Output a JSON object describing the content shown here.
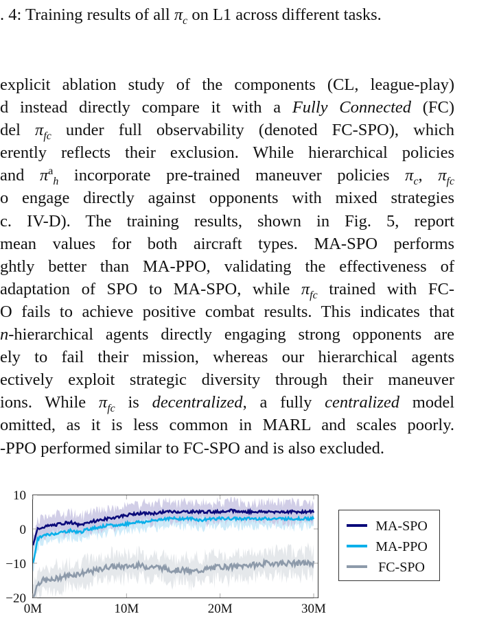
{
  "caption": {
    "text_prefix": ". 4: Training results of all ",
    "symbol": "π",
    "symbol_sub": "c",
    "text_suffix": " on L1 across different tasks."
  },
  "paragraph": {
    "lines": [
      {
        "segments": [
          {
            "t": "explicit ablation study of the components (CL, league-play)"
          }
        ]
      },
      {
        "segments": [
          {
            "t": "d instead directly compare it with a "
          },
          {
            "t": "Fully Connected",
            "i": true
          },
          {
            "t": " (FC)"
          }
        ]
      },
      {
        "segments": [
          {
            "t": "del "
          },
          {
            "t": "π",
            "i": true
          },
          {
            "t": "fc",
            "sub": true
          },
          {
            "t": " under full observability (denoted FC-SPO), which"
          }
        ]
      },
      {
        "segments": [
          {
            "t": "erently reflects their exclusion. While hierarchical policies"
          }
        ]
      },
      {
        "segments": [
          {
            "t": " and "
          },
          {
            "t": "π",
            "i": true
          },
          {
            "t": "a",
            "sup": true
          },
          {
            "t": "h",
            "sub": true
          },
          {
            "t": " incorporate pre-trained maneuver policies "
          },
          {
            "t": "π",
            "i": true
          },
          {
            "t": "c",
            "sub": true
          },
          {
            "t": ", "
          },
          {
            "t": "π",
            "i": true
          },
          {
            "t": "fc",
            "sub": true
          }
        ]
      },
      {
        "segments": [
          {
            "t": "o engage directly against opponents with mixed strategies"
          }
        ]
      },
      {
        "segments": [
          {
            "t": "c. IV-D). The training results, shown in Fig. 5, report"
          }
        ]
      },
      {
        "segments": [
          {
            "t": " mean values for both aircraft types. MA-SPO performs"
          }
        ]
      },
      {
        "segments": [
          {
            "t": "ghtly better than MA-PPO, validating the effectiveness of"
          }
        ]
      },
      {
        "segments": [
          {
            "t": " adaptation of SPO to MA-SPO, while "
          },
          {
            "t": "π",
            "i": true
          },
          {
            "t": "fc",
            "sub": true
          },
          {
            "t": " trained with FC-"
          }
        ]
      },
      {
        "segments": [
          {
            "t": "O fails to achieve positive combat results. This indicates that"
          }
        ]
      },
      {
        "segments": [
          {
            "t": "n",
            "i": true
          },
          {
            "t": "-hierarchical agents directly engaging strong opponents are"
          }
        ]
      },
      {
        "segments": [
          {
            "t": "ely to fail their mission, whereas our hierarchical agents"
          }
        ]
      },
      {
        "segments": [
          {
            "t": "ectively exploit strategic diversity through their maneuver"
          }
        ]
      },
      {
        "segments": [
          {
            "t": "ions. While "
          },
          {
            "t": "π",
            "i": true
          },
          {
            "t": "fc",
            "sub": true
          },
          {
            "t": " is "
          },
          {
            "t": "decentralized",
            "i": true
          },
          {
            "t": ", a fully "
          },
          {
            "t": "centralized",
            "i": true
          },
          {
            "t": " model"
          }
        ]
      },
      {
        "segments": [
          {
            "t": "omitted, as it is less common in MARL and scales poorly."
          }
        ]
      },
      {
        "segments": [
          {
            "t": "-PPO performed similar to FC-SPO and is also excluded."
          }
        ]
      }
    ]
  },
  "chart_data": {
    "type": "line",
    "title": "",
    "xlabel": "",
    "ylabel": "",
    "x_ticks": [
      "0M",
      "10M",
      "20M",
      "30M"
    ],
    "y_ticks": [
      "10",
      "0",
      "−10",
      "−20"
    ],
    "xlim": [
      0,
      30
    ],
    "ylim": [
      -20,
      10
    ],
    "grid": false,
    "legend_position": "right-outside",
    "x": [
      0,
      0.5,
      1,
      2,
      3,
      4,
      5,
      6,
      7,
      8,
      9,
      10,
      11,
      12,
      13,
      14,
      15,
      16,
      17,
      18,
      19,
      20,
      21,
      22,
      23,
      24,
      25,
      26,
      27,
      28,
      29,
      30
    ],
    "series": [
      {
        "name": "MA-SPO",
        "color": "#0a0a7a",
        "band_color": "#c9c6e3",
        "values": [
          -5,
          0,
          0.5,
          1,
          1.5,
          2,
          1,
          2,
          2.5,
          3,
          3.5,
          4,
          4.5,
          4.5,
          4.5,
          5,
          5,
          5,
          5,
          5,
          5,
          5,
          5.5,
          5,
          5,
          5,
          5,
          5,
          5,
          5,
          5,
          5
        ]
      },
      {
        "name": "MA-PPO",
        "color": "#0ab0ea",
        "band_color": "#c6e8f8",
        "values": [
          -10,
          -3,
          -2,
          -1.5,
          -1,
          -0.5,
          -1,
          0,
          0.5,
          1,
          1,
          1.5,
          2,
          2,
          2.5,
          3,
          3,
          3,
          3,
          2.5,
          3,
          3,
          3,
          3,
          3,
          3,
          3,
          3,
          3,
          3,
          3,
          3
        ]
      },
      {
        "name": "FC-SPO",
        "color": "#8d9aaa",
        "band_color": "#e1e4e8",
        "values": [
          -20,
          -16,
          -15,
          -15,
          -14,
          -13.5,
          -13,
          -12.5,
          -12,
          -11,
          -11,
          -11,
          -10.5,
          -11,
          -11,
          -11.5,
          -12,
          -12,
          -12.5,
          -12,
          -11.5,
          -11,
          -11,
          -11,
          -10.5,
          -10.5,
          -10,
          -10,
          -10,
          -10,
          -10,
          -10
        ]
      }
    ]
  },
  "legend": {
    "items": [
      {
        "label": "MA-SPO",
        "color": "#0a0a7a"
      },
      {
        "label": "MA-PPO",
        "color": "#0ab0ea"
      },
      {
        "label": "FC-SPO",
        "color": "#8d9aaa"
      }
    ]
  }
}
